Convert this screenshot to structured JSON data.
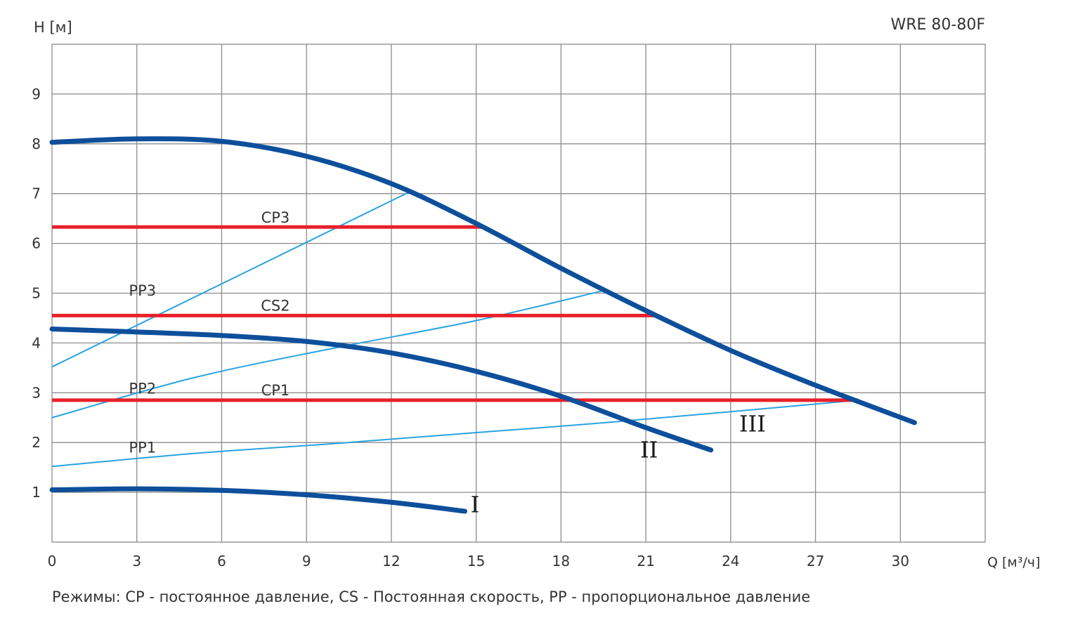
{
  "chart_data": {
    "type": "line",
    "title": "WRE 80-80F",
    "xlabel": "Q [м³/ч]",
    "ylabel": "H [м]",
    "x_origin_label": "0",
    "xlim": [
      0,
      33
    ],
    "ylim": [
      0,
      10
    ],
    "x_ticks": [
      3,
      6,
      9,
      12,
      15,
      18,
      21,
      24,
      27,
      30
    ],
    "y_ticks": [
      1,
      2,
      3,
      4,
      5,
      6,
      7,
      8,
      9
    ],
    "grid": true,
    "series": [
      {
        "name": "I",
        "kind": "speed",
        "label_at": [
          14.8,
          0.6
        ],
        "x": [
          0,
          3,
          6,
          9,
          12,
          14.6
        ],
        "y": [
          1.05,
          1.07,
          1.04,
          0.95,
          0.8,
          0.62
        ]
      },
      {
        "name": "II",
        "kind": "speed",
        "label_at": [
          20.8,
          1.7
        ],
        "x": [
          0,
          3,
          6,
          9,
          12,
          15,
          18,
          21,
          23.3
        ],
        "y": [
          4.28,
          4.22,
          4.15,
          4.03,
          3.8,
          3.43,
          2.93,
          2.3,
          1.85
        ]
      },
      {
        "name": "III",
        "kind": "speed",
        "label_at": [
          24.3,
          2.22
        ],
        "x": [
          0,
          3,
          6,
          9,
          12,
          15,
          18,
          21,
          24,
          27,
          30.5
        ],
        "y": [
          8.03,
          8.1,
          8.05,
          7.75,
          7.2,
          6.4,
          5.5,
          4.65,
          3.85,
          3.15,
          2.4
        ]
      },
      {
        "name": "CP3",
        "kind": "cp",
        "label_at": [
          7.9,
          6.42
        ],
        "x": [
          0,
          15.3
        ],
        "y": [
          6.33,
          6.33
        ]
      },
      {
        "name": "CS2",
        "kind": "cp",
        "label_at": [
          7.9,
          4.65
        ],
        "x": [
          0,
          21.4
        ],
        "y": [
          4.55,
          4.55
        ]
      },
      {
        "name": "CP1",
        "kind": "cp",
        "label_at": [
          7.9,
          2.95
        ],
        "x": [
          0,
          28.5
        ],
        "y": [
          2.85,
          2.85
        ]
      },
      {
        "name": "PP3",
        "kind": "pp",
        "label_at": [
          3.2,
          4.95
        ],
        "x": [
          0,
          12.7
        ],
        "y": [
          3.52,
          7.05
        ]
      },
      {
        "name": "PP2",
        "kind": "pp",
        "label_at": [
          3.2,
          2.98
        ],
        "x": [
          0,
          5,
          10,
          15,
          19.5
        ],
        "y": [
          2.5,
          3.3,
          3.9,
          4.45,
          5.05
        ]
      },
      {
        "name": "PP1",
        "kind": "pp",
        "label_at": [
          3.2,
          1.8
        ],
        "x": [
          0,
          5,
          10,
          15,
          20,
          28.5
        ],
        "y": [
          1.52,
          1.78,
          1.98,
          2.2,
          2.42,
          2.85
        ]
      }
    ],
    "colors": {
      "speed": "#0d4f9b",
      "cp": "#e8202a",
      "pp": "#2aa3e0",
      "grid": "#8c8c8c",
      "text": "#333333"
    }
  },
  "note": "Режимы: CP - постоянное давление, CS - Постоянная скорость, PP - пропорциональное давление"
}
